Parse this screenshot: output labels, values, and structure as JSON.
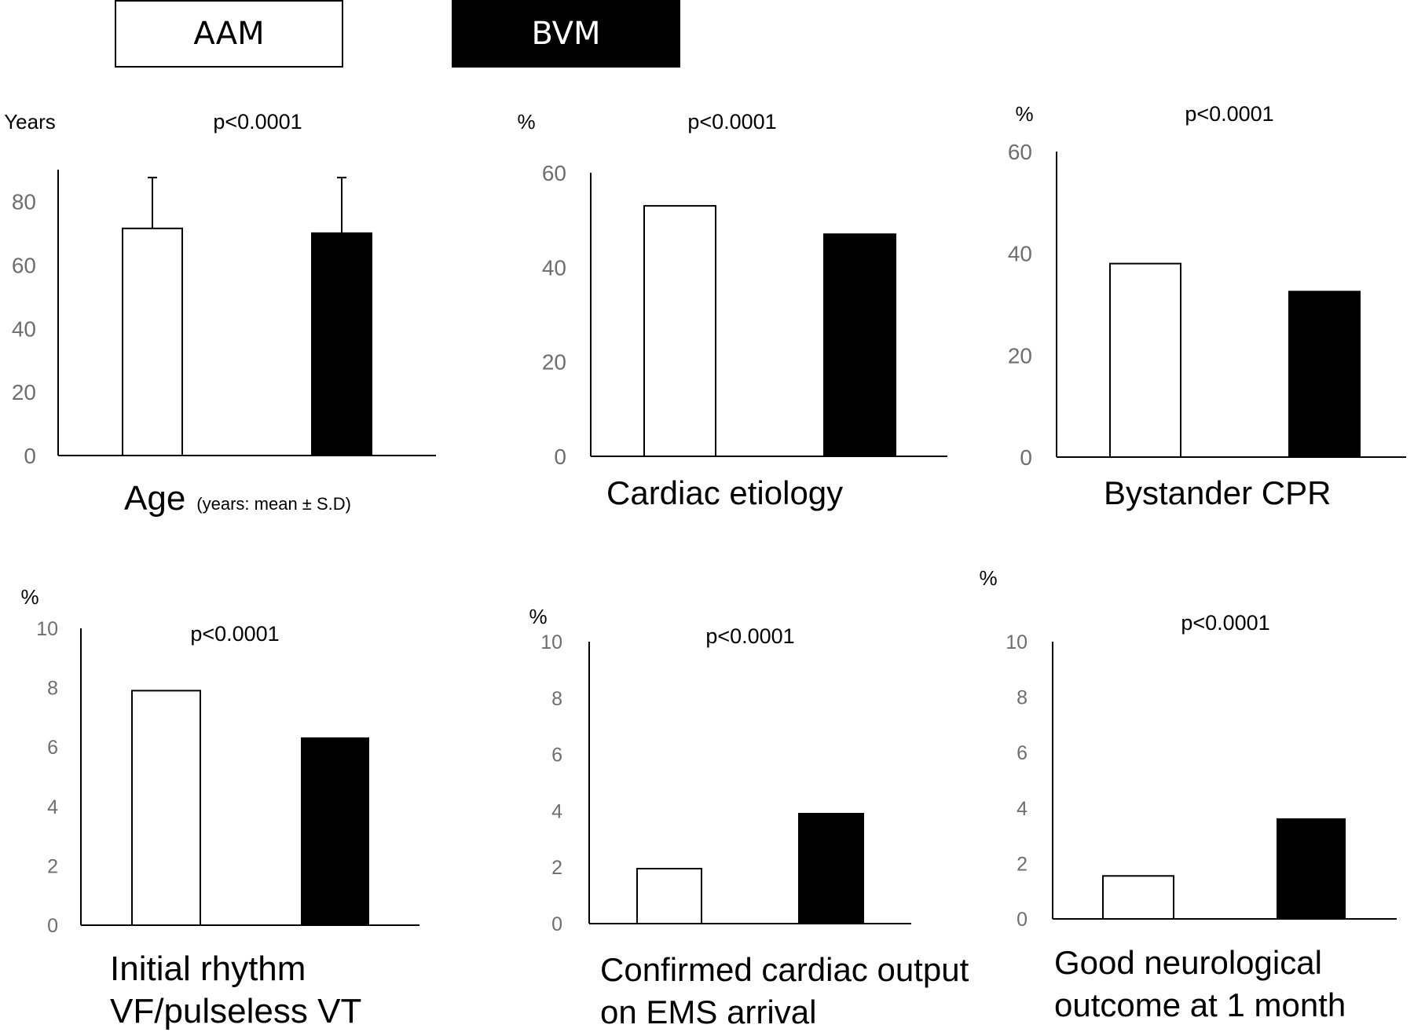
{
  "legend": [
    {
      "name": "AAM",
      "fill": "#ffffff"
    },
    {
      "name": "BVM",
      "fill": "#000000"
    }
  ],
  "colors": {
    "axis": "#000000",
    "tick_text": "#6e6e6e",
    "bar_stroke": "#000000"
  },
  "chart_data": [
    {
      "type": "bar",
      "title": "Age",
      "title_note": "(years:  mean ± S.D)",
      "ylabel": "Years",
      "pvalue": "p<0.0001",
      "categories": [
        "AAM",
        "BVM"
      ],
      "values": [
        71.5,
        70
      ],
      "error": [
        16,
        17.5
      ],
      "ylim": [
        0,
        90
      ],
      "yticks": [
        "0",
        "20",
        "40",
        "60",
        "80"
      ],
      "grid": false,
      "legend_position": "top"
    },
    {
      "type": "bar",
      "title": "Cardiac etiology",
      "ylabel": "%",
      "pvalue": "p<0.0001",
      "categories": [
        "AAM",
        "BVM"
      ],
      "values": [
        53,
        47
      ],
      "ylim": [
        0,
        60
      ],
      "yticks": [
        "0",
        "20",
        "40",
        "60"
      ],
      "grid": false
    },
    {
      "type": "bar",
      "title": "Bystander CPR",
      "ylabel": "%",
      "pvalue": "p<0.0001",
      "categories": [
        "AAM",
        "BVM"
      ],
      "values": [
        38,
        32.5
      ],
      "ylim": [
        0,
        60
      ],
      "yticks": [
        "0",
        "20",
        "40",
        "60"
      ],
      "grid": false
    },
    {
      "type": "bar",
      "title": "Initial rhythm\nVF/pulseless VT",
      "ylabel": "%",
      "pvalue": "p<0.0001",
      "categories": [
        "AAM",
        "BVM"
      ],
      "values": [
        7.9,
        6.3
      ],
      "ylim": [
        0,
        10
      ],
      "yticks": [
        "0",
        "2",
        "4",
        "6",
        "8",
        "10"
      ],
      "grid": false
    },
    {
      "type": "bar",
      "title": "Confirmed cardiac output\non EMS arrival",
      "ylabel": "%",
      "pvalue": "p<0.0001",
      "categories": [
        "AAM",
        "BVM"
      ],
      "values": [
        1.95,
        3.9
      ],
      "ylim": [
        0,
        10
      ],
      "yticks": [
        "0",
        "2",
        "4",
        "6",
        "8",
        "10"
      ],
      "grid": false
    },
    {
      "type": "bar",
      "title": "Good neurological\noutcome at 1 month",
      "ylabel": "%",
      "pvalue": "p<0.0001",
      "categories": [
        "AAM",
        "BVM"
      ],
      "values": [
        1.55,
        3.6
      ],
      "ylim": [
        0,
        10
      ],
      "yticks": [
        "0",
        "2",
        "4",
        "6",
        "8",
        "10"
      ],
      "grid": false
    }
  ]
}
